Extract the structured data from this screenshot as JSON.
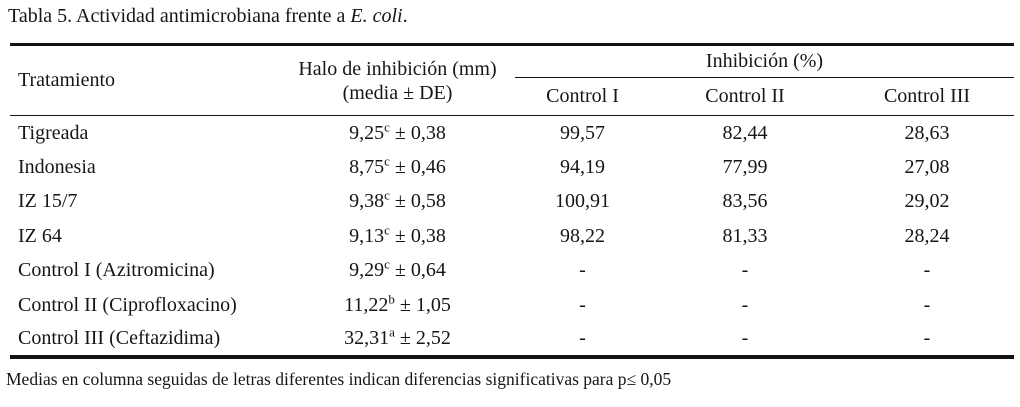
{
  "page": {
    "title": {
      "text_before_italic": "Tabla 5. Actividad antimicrobiana frente a ",
      "italic_text": "E. coli",
      "text_after_italic": "."
    },
    "footnote": "Medias en columna seguidas de letras diferentes indican diferencias significativas para p≤ 0,05"
  },
  "table": {
    "headers": {
      "treatment": "Tratamiento",
      "halo_line1": "Halo de inhibición (mm)",
      "halo_line2": "(media ± DE)",
      "inhibition_group": "Inhibición (%)",
      "control1": "Control I",
      "control2": "Control II",
      "control3": "Control III"
    },
    "rows": [
      {
        "treatment": "Tigreada",
        "halo_mean": "9,25",
        "halo_sig": "c",
        "halo_sd": "± 0,38",
        "control1": "99,57",
        "control2": "82,44",
        "control3": "28,63"
      },
      {
        "treatment": "Indonesia",
        "halo_mean": "8,75",
        "halo_sig": "c",
        "halo_sd": "± 0,46",
        "control1": "94,19",
        "control2": "77,99",
        "control3": "27,08"
      },
      {
        "treatment": "IZ 15/7",
        "halo_mean": "9,38",
        "halo_sig": "c",
        "halo_sd": "± 0,58",
        "control1": "100,91",
        "control2": "83,56",
        "control3": "29,02"
      },
      {
        "treatment": "IZ 64",
        "halo_mean": "9,13",
        "halo_sig": "c",
        "halo_sd": "± 0,38",
        "control1": "98,22",
        "control2": "81,33",
        "control3": "28,24"
      },
      {
        "treatment": "Control I (Azitromicina)",
        "halo_mean": "9,29",
        "halo_sig": "c",
        "halo_sd": "± 0,64",
        "control1": "-",
        "control2": "-",
        "control3": "-"
      },
      {
        "treatment": "Control II (Ciprofloxacino)",
        "halo_mean": "11,22",
        "halo_sig": "b",
        "halo_sd": "± 1,05",
        "control1": "-",
        "control2": "-",
        "control3": "-"
      },
      {
        "treatment": "Control III (Ceftazidima)",
        "halo_mean": "32,31",
        "halo_sig": "a",
        "halo_sd": "± 2,52",
        "control1": "-",
        "control2": "-",
        "control3": "-"
      }
    ]
  }
}
